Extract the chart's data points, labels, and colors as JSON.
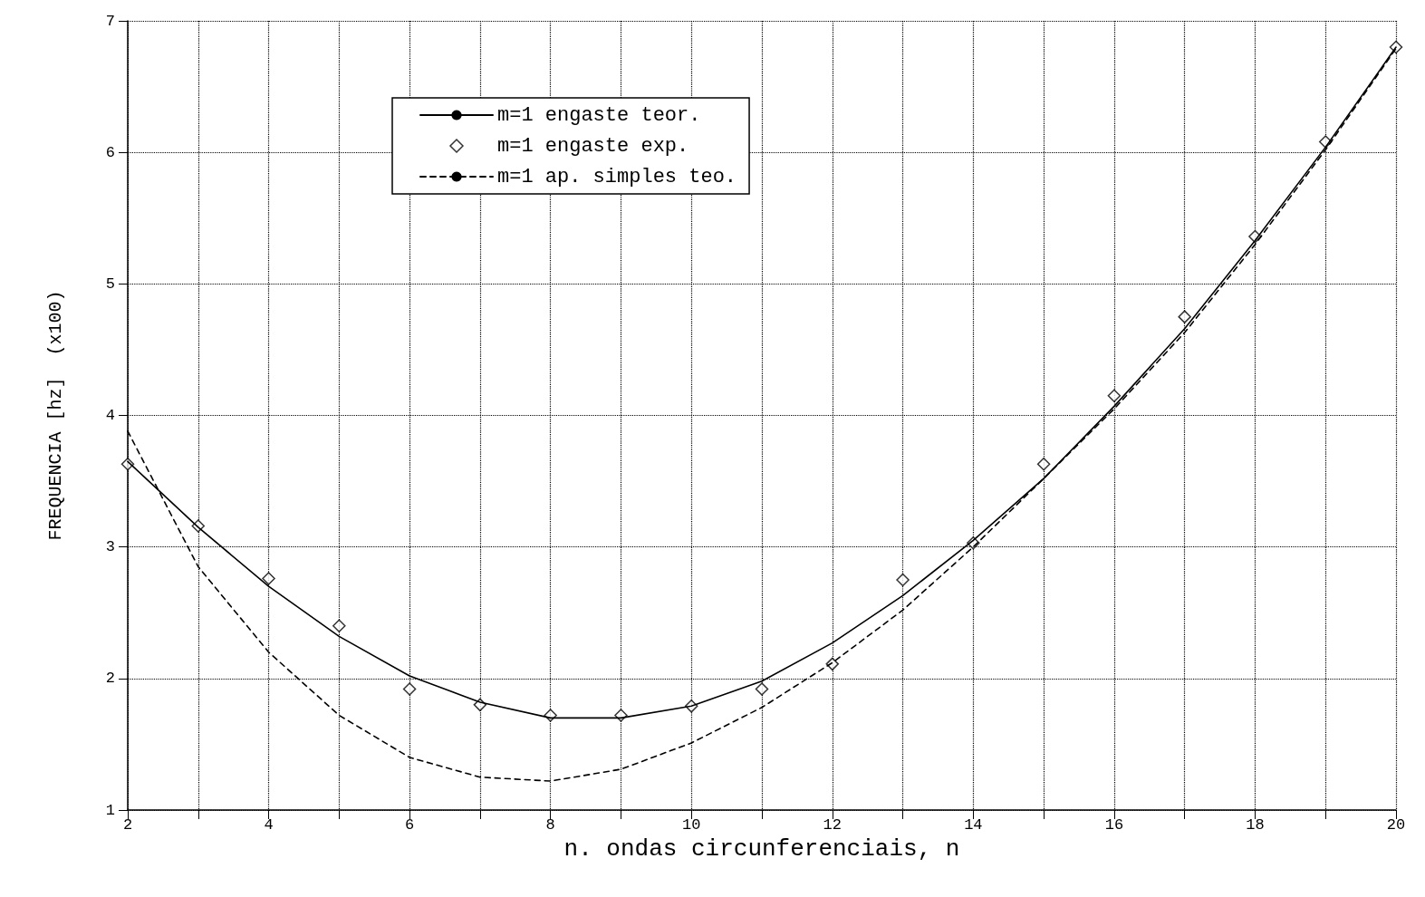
{
  "chart_data": {
    "type": "line",
    "xlabel": "n. ondas circunferenciais, n",
    "ylabel": "FREQUENCIA [hz]  (x100)",
    "x": [
      2,
      3,
      4,
      5,
      6,
      7,
      8,
      9,
      10,
      11,
      12,
      13,
      14,
      15,
      16,
      17,
      18,
      19,
      20
    ],
    "series": [
      {
        "name": "m=1 engaste teor.",
        "type": "line",
        "color": "#000000",
        "line_style": "solid",
        "marker": "none",
        "values": [
          3.65,
          3.15,
          2.7,
          2.32,
          2.02,
          1.82,
          1.7,
          1.7,
          1.79,
          1.98,
          2.27,
          2.63,
          3.05,
          3.52,
          4.07,
          4.66,
          5.33,
          6.04,
          6.8
        ]
      },
      {
        "name": "m=1 engaste exp.",
        "type": "scatter",
        "color": "#000000",
        "marker": "diamond",
        "values": [
          3.63,
          3.16,
          2.76,
          2.4,
          1.92,
          1.8,
          1.72,
          1.72,
          1.79,
          1.92,
          2.11,
          2.75,
          3.03,
          3.63,
          4.15,
          4.75,
          5.36,
          6.08,
          6.8
        ]
      },
      {
        "name": "m=1 ap. simples teo.",
        "type": "line",
        "color": "#000000",
        "line_style": "dashed",
        "marker": "none",
        "values": [
          3.88,
          2.85,
          2.2,
          1.72,
          1.4,
          1.25,
          1.22,
          1.31,
          1.51,
          1.78,
          2.12,
          2.52,
          3.0,
          3.52,
          4.05,
          4.63,
          5.3,
          6.02,
          6.79
        ]
      }
    ],
    "xlim": [
      2,
      20
    ],
    "xticks": [
      2,
      {
        "value": 3,
        "label": null
      },
      4,
      {
        "value": 5,
        "label": null
      },
      6,
      {
        "value": 7,
        "label": null
      },
      8,
      {
        "value": 9,
        "label": null
      },
      10,
      {
        "value": 11,
        "label": null
      },
      12,
      {
        "value": 13,
        "label": null
      },
      14,
      {
        "value": 15,
        "label": null
      },
      16,
      {
        "value": 17,
        "label": null
      },
      18,
      {
        "value": 19,
        "label": null
      },
      20
    ],
    "ylim": [
      1,
      7
    ],
    "yticks": [
      1,
      2,
      3,
      4,
      5,
      6,
      7
    ],
    "grid": true,
    "legend": "top"
  }
}
